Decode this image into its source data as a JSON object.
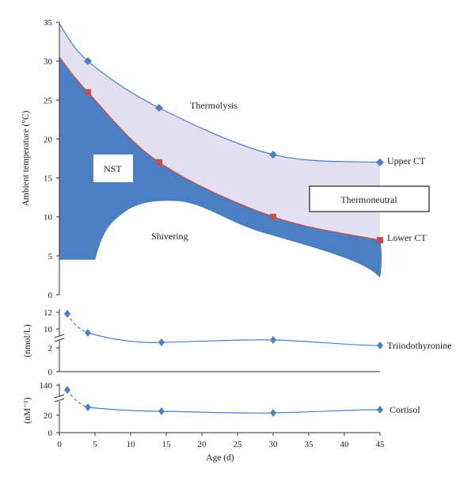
{
  "chart_data": [
    {
      "type": "area",
      "xlabel": "Age (d)",
      "ylabel": "Ambient temperature (°C)",
      "xlim": [
        0,
        45
      ],
      "ylim": [
        0,
        35
      ],
      "x_ticks": [
        "0",
        "5",
        "10",
        "15",
        "20",
        "25",
        "30",
        "35",
        "40",
        "45"
      ],
      "y_ticks": [
        "0",
        "5",
        "10",
        "15",
        "20",
        "25",
        "30",
        "35"
      ],
      "series": [
        {
          "name": "Upper CT",
          "color": "#4a7fc1",
          "marker": "diamond",
          "x": [
            4,
            14,
            30,
            45
          ],
          "y": [
            30,
            24,
            18,
            17
          ]
        },
        {
          "name": "Lower CT",
          "color": "#c0504d",
          "marker": "square",
          "x": [
            4,
            14,
            30,
            45
          ],
          "y": [
            26,
            17,
            10,
            7
          ]
        }
      ],
      "regions": [
        {
          "name": "Thermolysis",
          "color": "#e4dff0"
        },
        {
          "name": "NST",
          "color": "#4a7fc1"
        },
        {
          "name": "Shivering",
          "color": "#ffffff"
        }
      ],
      "annotations": [
        "Thermolysis",
        "NST",
        "Shivering",
        "Thermoneutral",
        "Upper CT",
        "Lower CT"
      ]
    },
    {
      "type": "line",
      "ylabel": "(nmol/L)",
      "y_ticks_upper": [
        "10",
        "12"
      ],
      "y_ticks_lower": [
        "0",
        "2"
      ],
      "series": [
        {
          "name": "Triiodothyronine",
          "color": "#4a7fc1",
          "marker": "diamond",
          "x": [
            1,
            4,
            14,
            30,
            45
          ],
          "y": [
            11.8,
            9.6,
            2.3,
            2.5,
            1.9
          ]
        }
      ]
    },
    {
      "type": "line",
      "ylabel": "(nM⁻¹)",
      "y_ticks_upper": [
        "140"
      ],
      "y_ticks_lower": [
        "0",
        "20"
      ],
      "series": [
        {
          "name": "Cortisol",
          "color": "#4a7fc1",
          "marker": "diamond",
          "x": [
            1,
            4,
            14,
            30,
            45
          ],
          "y": [
            135,
            28,
            23,
            22,
            25
          ]
        }
      ]
    }
  ]
}
